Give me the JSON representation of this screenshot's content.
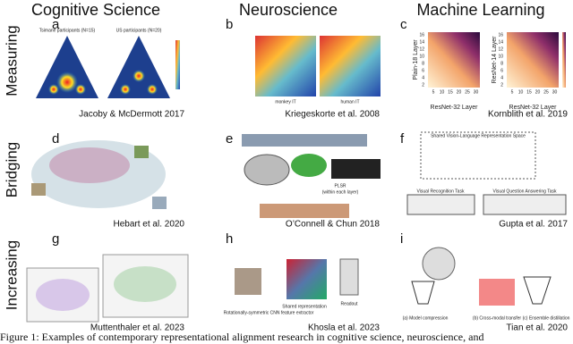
{
  "columns": [
    "Cognitive Science",
    "Neuroscience",
    "Machine Learning"
  ],
  "rows": [
    "Measuring",
    "Bridging",
    "Increasing"
  ],
  "panels": [
    {
      "letter": "a",
      "citation": "Jacoby & McDermott 2017",
      "texts": [
        "Tsimané participants (N=15)",
        "US participants (N=20)"
      ]
    },
    {
      "letter": "b",
      "citation": "Kriegeskorte et al. 2008",
      "texts": [
        "monkey IT",
        "human IT"
      ]
    },
    {
      "letter": "c",
      "citation": "Kornblith et al. 2019",
      "texts": [
        "Plain-18 Layer",
        "ResNet-32 Layer",
        "ResNet-14 Layer",
        "ResNet-32 Layer"
      ],
      "yticks": [
        "16",
        "14",
        "12",
        "10",
        "8",
        "6",
        "4",
        "2"
      ],
      "xticks": [
        "5",
        "10",
        "15",
        "20",
        "25",
        "30"
      ]
    },
    {
      "letter": "d",
      "citation": "Hebart et al. 2020",
      "texts": []
    },
    {
      "letter": "e",
      "citation": "O’Connell & Chun 2018",
      "texts": [
        "PLSR",
        "(within each layer)"
      ]
    },
    {
      "letter": "f",
      "citation": "Gupta et al. 2017",
      "texts": [
        "Shared Vision-Language Representation Space",
        "Visual Recognition Task",
        "Visual Question Answering Task"
      ]
    },
    {
      "letter": "g",
      "citation": "Muttenthaler et al. 2023",
      "texts": []
    },
    {
      "letter": "h",
      "citation": "Khosla et al. 2023",
      "texts": [
        "Shared representation",
        "Readout",
        "Rotationally-symmetric CNN feature extractor"
      ]
    },
    {
      "letter": "i",
      "citation": "Tian et al. 2020",
      "texts": [
        "(a) Model compression",
        "(b) Cross-modal transfer",
        "(c) Ensemble distillation"
      ]
    }
  ],
  "caption": "Figure 1: Examples of contemporary representational alignment research in cognitive science, neuroscience, and"
}
